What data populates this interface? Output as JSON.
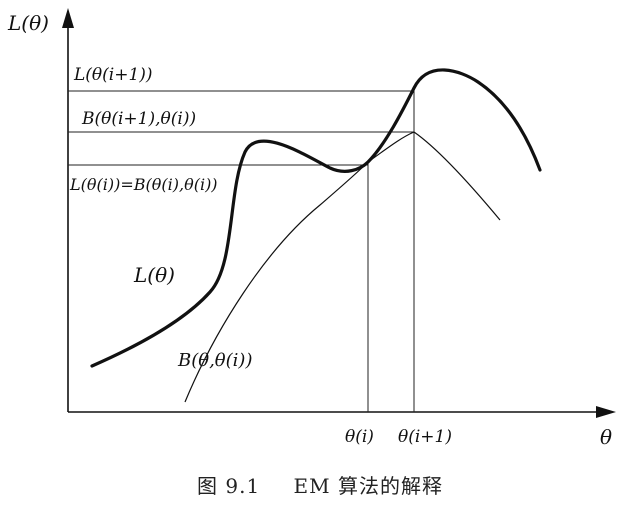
{
  "diagram": {
    "axis_y_label": "L(θ)",
    "axis_x_label": "θ",
    "label_L_next": "L(θ(i+1))",
    "label_B_next": "B(θ(i+1),θ(i))",
    "label_equal": "L(θ(i))=B(θ(i),θ(i))",
    "curve_L_label": "L(θ)",
    "curve_B_label": "B(θ,θ(i))",
    "tick_theta_i": "θ(i)",
    "tick_theta_next": "θ(i+1)"
  },
  "caption": {
    "number": "图 9.1",
    "text": "EM 算法的解释"
  }
}
